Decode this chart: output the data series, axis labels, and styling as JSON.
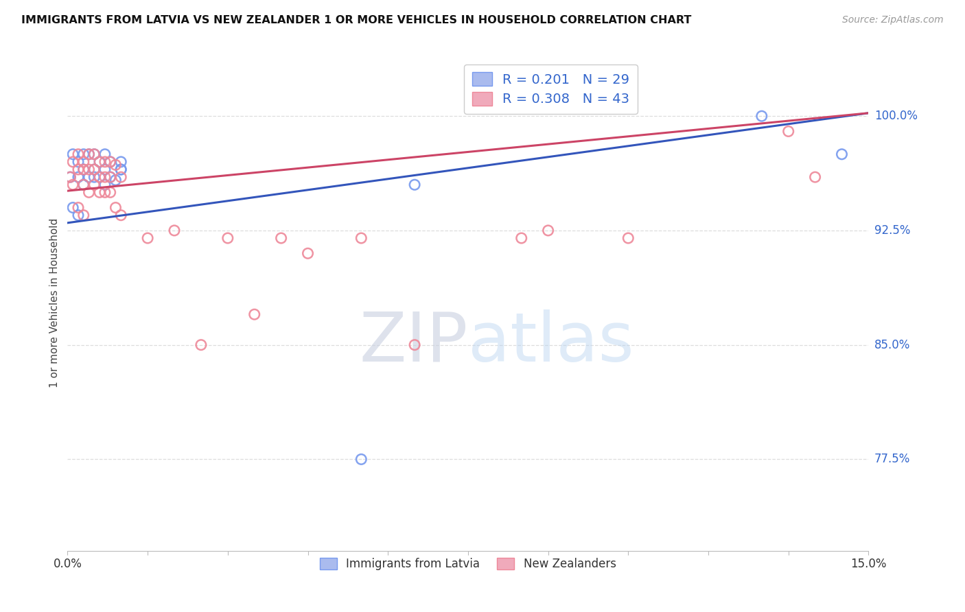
{
  "title": "IMMIGRANTS FROM LATVIA VS NEW ZEALANDER 1 OR MORE VEHICLES IN HOUSEHOLD CORRELATION CHART",
  "source": "Source: ZipAtlas.com",
  "ylabel": "1 or more Vehicles in Household",
  "xmin": 0.0,
  "xmax": 0.15,
  "ymin": 0.715,
  "ymax": 1.04,
  "grid_color": "#dddddd",
  "background_color": "#ffffff",
  "blue_color": "#7799ee",
  "pink_color": "#ee8899",
  "blue_line_color": "#3355bb",
  "pink_line_color": "#cc4466",
  "R_blue": 0.201,
  "N_blue": 29,
  "R_pink": 0.308,
  "N_pink": 43,
  "blue_line_x0": 0.0,
  "blue_line_y0": 0.93,
  "blue_line_x1": 0.15,
  "blue_line_y1": 1.002,
  "pink_line_x0": 0.0,
  "pink_line_y0": 0.951,
  "pink_line_x1": 0.15,
  "pink_line_y1": 1.002,
  "blue_x": [
    0.0005,
    0.001,
    0.001,
    0.002,
    0.002,
    0.002,
    0.003,
    0.003,
    0.003,
    0.004,
    0.004,
    0.005,
    0.005,
    0.005,
    0.006,
    0.006,
    0.007,
    0.007,
    0.007,
    0.008,
    0.008,
    0.009,
    0.01,
    0.01,
    0.01,
    0.055,
    0.065,
    0.13,
    0.145
  ],
  "blue_y": [
    0.96,
    0.975,
    0.94,
    0.97,
    0.96,
    0.935,
    0.975,
    0.965,
    0.955,
    0.975,
    0.96,
    0.96,
    0.975,
    0.965,
    0.97,
    0.96,
    0.975,
    0.965,
    0.955,
    0.97,
    0.96,
    0.958,
    0.965,
    0.965,
    0.97,
    0.775,
    0.955,
    1.0,
    0.975
  ],
  "pink_x": [
    0.0005,
    0.001,
    0.001,
    0.002,
    0.002,
    0.002,
    0.003,
    0.003,
    0.003,
    0.003,
    0.004,
    0.004,
    0.004,
    0.005,
    0.005,
    0.005,
    0.006,
    0.006,
    0.006,
    0.007,
    0.007,
    0.007,
    0.008,
    0.008,
    0.008,
    0.009,
    0.009,
    0.01,
    0.01,
    0.015,
    0.02,
    0.025,
    0.03,
    0.035,
    0.04,
    0.045,
    0.055,
    0.065,
    0.085,
    0.09,
    0.105,
    0.135,
    0.14
  ],
  "pink_y": [
    0.96,
    0.97,
    0.955,
    0.975,
    0.965,
    0.94,
    0.97,
    0.965,
    0.955,
    0.935,
    0.975,
    0.965,
    0.95,
    0.975,
    0.965,
    0.955,
    0.97,
    0.96,
    0.95,
    0.97,
    0.96,
    0.95,
    0.97,
    0.96,
    0.95,
    0.968,
    0.94,
    0.96,
    0.935,
    0.92,
    0.925,
    0.85,
    0.92,
    0.87,
    0.92,
    0.91,
    0.92,
    0.85,
    0.92,
    0.925,
    0.92,
    0.99,
    0.96
  ],
  "marker_size": 110,
  "ytick_vals": [
    0.775,
    0.85,
    0.925,
    1.0
  ],
  "ytick_labels": [
    "77.5%",
    "85.0%",
    "92.5%",
    "100.0%"
  ],
  "xtick_vals": [
    0.0,
    0.015,
    0.03,
    0.045,
    0.06,
    0.075,
    0.09,
    0.105,
    0.12,
    0.135,
    0.15
  ],
  "xtick_labels": [
    "0.0%",
    "",
    "",
    "",
    "",
    "",
    "",
    "",
    "",
    "",
    "15.0%"
  ]
}
